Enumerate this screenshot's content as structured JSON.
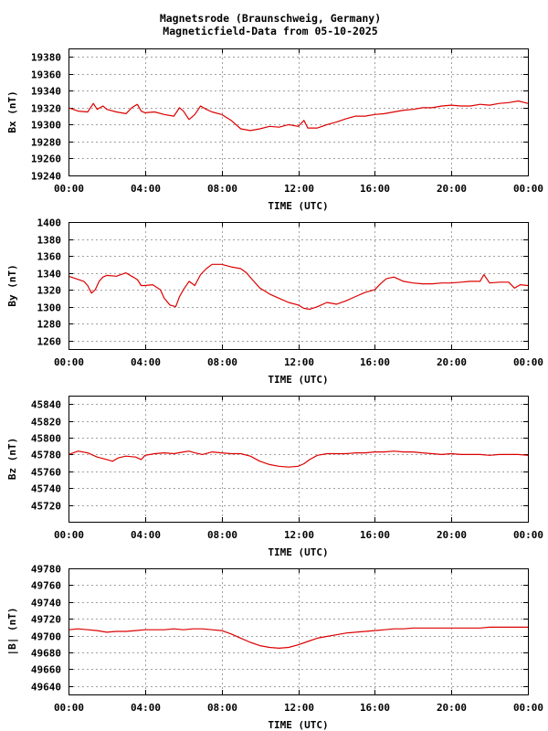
{
  "header": {
    "title_line1": "Magnetsrode (Braunschweig, Germany)",
    "title_line2": "Magneticfield-Data from 05-10-2025"
  },
  "colors": {
    "series": "#dd0000",
    "grid": "#a0a0a0",
    "axes": "#000000"
  },
  "chart_data": [
    {
      "type": "line",
      "ylabel": "Bx (nT)",
      "xlabel": "TIME (UTC)",
      "x_ticks": [
        "00:00",
        "04:00",
        "08:00",
        "12:00",
        "16:00",
        "20:00",
        "00:00"
      ],
      "xlim": [
        0,
        24
      ],
      "ylim": [
        19240,
        19390
      ],
      "y_ticks": [
        19240,
        19260,
        19280,
        19300,
        19320,
        19340,
        19360,
        19380
      ],
      "grid": true,
      "series": [
        {
          "x": [
            0,
            0.5,
            1,
            1.3,
            1.5,
            1.8,
            2,
            2.5,
            3,
            3.3,
            3.6,
            3.8,
            4,
            4.5,
            5,
            5.5,
            5.8,
            6,
            6.3,
            6.6,
            6.9,
            7.2,
            7.5,
            8,
            8.5,
            9,
            9.5,
            10,
            10.5,
            11,
            11.5,
            12,
            12.3,
            12.5,
            13,
            13.5,
            14,
            14.5,
            15,
            15.5,
            16,
            16.5,
            17,
            17.5,
            18,
            18.5,
            19,
            19.5,
            20,
            20.5,
            21,
            21.5,
            22,
            22.5,
            23,
            23.5,
            24
          ],
          "y": [
            19320,
            19316,
            19315,
            19325,
            19318,
            19322,
            19318,
            19315,
            19313,
            19320,
            19324,
            19316,
            19314,
            19315,
            19312,
            19310,
            19320,
            19316,
            19306,
            19312,
            19322,
            19318,
            19315,
            19312,
            19305,
            19295,
            19293,
            19295,
            19298,
            19297,
            19300,
            19298,
            19305,
            19296,
            19296,
            19300,
            19303,
            19307,
            19310,
            19310,
            19312,
            19313,
            19315,
            19317,
            19318,
            19320,
            19320,
            19322,
            19323,
            19322,
            19322,
            19324,
            19323,
            19325,
            19326,
            19328,
            19325
          ]
        }
      ]
    },
    {
      "type": "line",
      "ylabel": "By (nT)",
      "xlabel": "TIME (UTC)",
      "x_ticks": [
        "00:00",
        "04:00",
        "08:00",
        "12:00",
        "16:00",
        "20:00",
        "00:00"
      ],
      "xlim": [
        0,
        24
      ],
      "ylim": [
        1250,
        1400
      ],
      "y_ticks": [
        1260,
        1280,
        1300,
        1320,
        1340,
        1360,
        1380,
        1400
      ],
      "grid": true,
      "series": [
        {
          "x": [
            0,
            0.4,
            0.8,
            1,
            1.2,
            1.4,
            1.6,
            1.8,
            2,
            2.5,
            3,
            3.3,
            3.6,
            3.8,
            4,
            4.4,
            4.8,
            5,
            5.3,
            5.6,
            5.8,
            6,
            6.3,
            6.6,
            6.9,
            7.2,
            7.5,
            8,
            8.5,
            9,
            9.3,
            9.6,
            10,
            10.5,
            11,
            11.5,
            12,
            12.3,
            12.6,
            13,
            13.5,
            14,
            14.5,
            15,
            15.5,
            16,
            16.3,
            16.6,
            17,
            17.5,
            18,
            18.5,
            19,
            19.5,
            20,
            20.5,
            21,
            21.5,
            21.7,
            22,
            22.5,
            23,
            23.3,
            23.6,
            24
          ],
          "y": [
            1336,
            1333,
            1330,
            1325,
            1316,
            1320,
            1330,
            1335,
            1337,
            1336,
            1340,
            1336,
            1332,
            1325,
            1325,
            1326,
            1320,
            1310,
            1302,
            1300,
            1312,
            1320,
            1330,
            1325,
            1338,
            1345,
            1350,
            1350,
            1347,
            1345,
            1340,
            1332,
            1322,
            1315,
            1310,
            1305,
            1302,
            1298,
            1297,
            1300,
            1305,
            1303,
            1307,
            1312,
            1317,
            1320,
            1327,
            1333,
            1335,
            1330,
            1328,
            1327,
            1327,
            1328,
            1328,
            1329,
            1330,
            1330,
            1338,
            1328,
            1329,
            1329,
            1322,
            1326,
            1325
          ]
        }
      ]
    },
    {
      "type": "line",
      "ylabel": "Bz (nT)",
      "xlabel": "TIME (UTC)",
      "x_ticks": [
        "00:00",
        "04:00",
        "08:00",
        "12:00",
        "16:00",
        "20:00",
        "00:00"
      ],
      "xlim": [
        0,
        24
      ],
      "ylim": [
        45700,
        45850
      ],
      "y_ticks": [
        45720,
        45740,
        45760,
        45780,
        45800,
        45820,
        45840
      ],
      "grid": true,
      "series": [
        {
          "x": [
            0,
            0.5,
            1,
            1.5,
            2,
            2.3,
            2.6,
            3,
            3.5,
            3.8,
            4,
            4.5,
            5,
            5.5,
            6,
            6.3,
            6.6,
            7,
            7.5,
            8,
            8.5,
            9,
            9.5,
            10,
            10.5,
            11,
            11.5,
            12,
            12.3,
            12.6,
            13,
            13.5,
            14,
            14.5,
            15,
            15.5,
            16,
            16.5,
            17,
            17.5,
            18,
            18.5,
            19,
            19.5,
            20,
            20.5,
            21,
            21.5,
            22,
            22.5,
            23,
            23.5,
            24
          ],
          "y": [
            45780,
            45784,
            45782,
            45777,
            45774,
            45772,
            45776,
            45778,
            45777,
            45774,
            45779,
            45781,
            45782,
            45781,
            45783,
            45784,
            45782,
            45780,
            45783,
            45782,
            45781,
            45781,
            45778,
            45772,
            45768,
            45766,
            45765,
            45766,
            45769,
            45774,
            45779,
            45781,
            45781,
            45781,
            45782,
            45782,
            45783,
            45783,
            45784,
            45783,
            45783,
            45782,
            45781,
            45780,
            45781,
            45780,
            45780,
            45780,
            45779,
            45780,
            45780,
            45780,
            45779
          ]
        }
      ]
    },
    {
      "type": "line",
      "ylabel": "|B| (nT)",
      "xlabel": "TIME (UTC)",
      "x_ticks": [
        "00:00",
        "04:00",
        "08:00",
        "12:00",
        "16:00",
        "20:00",
        "00:00"
      ],
      "xlim": [
        0,
        24
      ],
      "ylim": [
        49630,
        49780
      ],
      "y_ticks": [
        49640,
        49660,
        49680,
        49700,
        49720,
        49740,
        49760,
        49780
      ],
      "grid": true,
      "series": [
        {
          "x": [
            0,
            0.5,
            1,
            1.5,
            2,
            2.5,
            3,
            3.5,
            4,
            4.5,
            5,
            5.5,
            6,
            6.5,
            7,
            7.5,
            8,
            8.5,
            9,
            9.5,
            10,
            10.5,
            11,
            11.5,
            12,
            12.5,
            13,
            13.5,
            14,
            14.5,
            15,
            15.5,
            16,
            16.5,
            17,
            17.5,
            18,
            18.5,
            19,
            19.5,
            20,
            20.5,
            21,
            21.5,
            22,
            22.5,
            23,
            23.5,
            24
          ],
          "y": [
            49707,
            49708,
            49707,
            49706,
            49704,
            49705,
            49705,
            49706,
            49707,
            49707,
            49707,
            49708,
            49707,
            49708,
            49708,
            49707,
            49706,
            49702,
            49697,
            49692,
            49688,
            49686,
            49685,
            49686,
            49689,
            49693,
            49697,
            49699,
            49701,
            49703,
            49704,
            49705,
            49706,
            49707,
            49708,
            49708,
            49709,
            49709,
            49709,
            49709,
            49709,
            49709,
            49709,
            49709,
            49710,
            49710,
            49710,
            49710,
            49710
          ]
        }
      ]
    }
  ]
}
